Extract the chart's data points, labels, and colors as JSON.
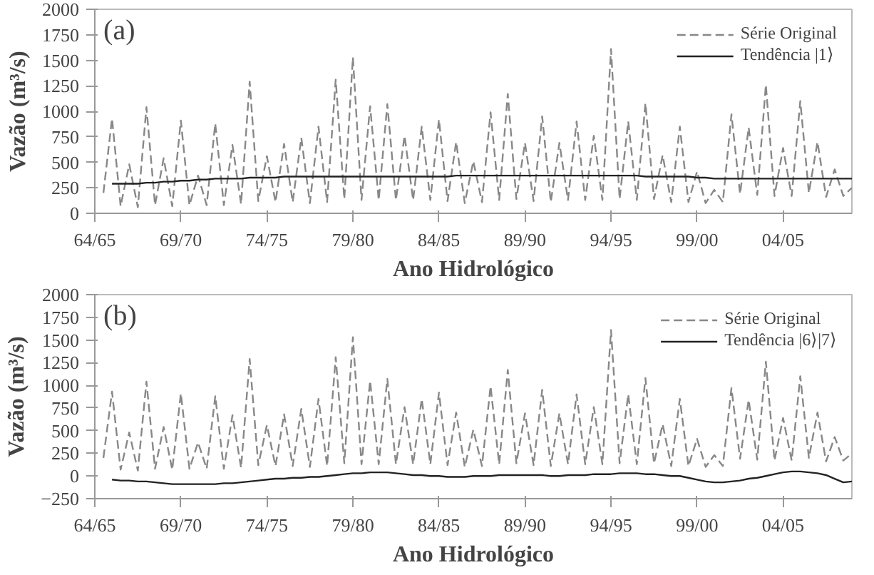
{
  "chart_data": [
    {
      "type": "line",
      "annotations": [
        "(a)"
      ],
      "xlabel": "Ano Hidrológico",
      "ylabel": "Vazão (m³/s)",
      "ylim": [
        0,
        2000
      ],
      "categories": [
        "64/65",
        null,
        null,
        null,
        null,
        null,
        null,
        null,
        null,
        null,
        "69/70",
        null,
        null,
        null,
        null,
        null,
        null,
        null,
        null,
        null,
        "74/75",
        null,
        null,
        null,
        null,
        null,
        null,
        null,
        null,
        null,
        "79/80",
        null,
        null,
        null,
        null,
        null,
        null,
        null,
        null,
        null,
        "84/85",
        null,
        null,
        null,
        null,
        null,
        null,
        null,
        null,
        null,
        "89/90",
        null,
        null,
        null,
        null,
        null,
        null,
        null,
        null,
        null,
        "94/95",
        null,
        null,
        null,
        null,
        null,
        null,
        null,
        null,
        null,
        "99/00",
        null,
        null,
        null,
        null,
        null,
        null,
        null,
        null,
        null,
        "04/05",
        null,
        null,
        null,
        null,
        null,
        null,
        null,
        null
      ],
      "yticks": [
        0,
        250,
        500,
        750,
        1000,
        1250,
        1500,
        1750,
        2000
      ],
      "grid": false,
      "legend": "top right",
      "series": [
        {
          "name": "Série Original",
          "color": "#888888",
          "line_style": "dashed",
          "values": [
            null,
            200,
            930,
            70,
            480,
            60,
            1040,
            80,
            540,
            70,
            910,
            80,
            370,
            80,
            880,
            80,
            670,
            90,
            1290,
            120,
            560,
            110,
            680,
            110,
            740,
            100,
            850,
            110,
            1310,
            140,
            1530,
            130,
            1050,
            130,
            1070,
            130,
            760,
            130,
            850,
            130,
            920,
            120,
            700,
            100,
            510,
            110,
            990,
            130,
            1170,
            140,
            690,
            120,
            950,
            110,
            690,
            130,
            900,
            130,
            760,
            130,
            1610,
            140,
            900,
            130,
            1080,
            140,
            570,
            110,
            850,
            110,
            410,
            100,
            230,
            110,
            970,
            190,
            840,
            180,
            1260,
            170,
            640,
            170,
            1100,
            200,
            700,
            160,
            430,
            170,
            250
          ]
        },
        {
          "name": "Tendência |1⟩",
          "color": "#222222",
          "line_style": "solid",
          "values": [
            null,
            null,
            290,
            290,
            290,
            290,
            300,
            300,
            310,
            310,
            320,
            320,
            330,
            330,
            340,
            340,
            340,
            340,
            350,
            350,
            350,
            350,
            360,
            360,
            360,
            360,
            360,
            360,
            360,
            360,
            360,
            360,
            360,
            360,
            360,
            360,
            360,
            360,
            360,
            360,
            360,
            360,
            370,
            370,
            370,
            370,
            370,
            370,
            370,
            370,
            370,
            370,
            370,
            370,
            370,
            370,
            370,
            370,
            370,
            370,
            370,
            370,
            370,
            370,
            360,
            360,
            360,
            360,
            360,
            360,
            350,
            350,
            340,
            340,
            340,
            340,
            340,
            340,
            340,
            340,
            340,
            340,
            340,
            340,
            340,
            340,
            340,
            340,
            340
          ]
        }
      ]
    },
    {
      "type": "line",
      "annotations": [
        "(b)"
      ],
      "xlabel": "Ano Hidrológico",
      "ylabel": "Vazão (m³/s)",
      "ylim": [
        -250,
        2000
      ],
      "categories": [
        "64/65",
        null,
        null,
        null,
        null,
        null,
        null,
        null,
        null,
        null,
        "69/70",
        null,
        null,
        null,
        null,
        null,
        null,
        null,
        null,
        null,
        "74/75",
        null,
        null,
        null,
        null,
        null,
        null,
        null,
        null,
        null,
        "79/80",
        null,
        null,
        null,
        null,
        null,
        null,
        null,
        null,
        null,
        "84/85",
        null,
        null,
        null,
        null,
        null,
        null,
        null,
        null,
        null,
        "89/90",
        null,
        null,
        null,
        null,
        null,
        null,
        null,
        null,
        null,
        "94/95",
        null,
        null,
        null,
        null,
        null,
        null,
        null,
        null,
        null,
        "99/00",
        null,
        null,
        null,
        null,
        null,
        null,
        null,
        null,
        null,
        "04/05",
        null,
        null,
        null,
        null,
        null,
        null,
        null,
        null
      ],
      "yticks": [
        -250,
        0,
        250,
        500,
        750,
        1000,
        1250,
        1500,
        1750,
        2000
      ],
      "grid": false,
      "legend": "top right",
      "series": [
        {
          "name": "Série Original",
          "color": "#888888",
          "line_style": "dashed",
          "values": [
            null,
            200,
            930,
            70,
            480,
            60,
            1040,
            80,
            540,
            70,
            910,
            80,
            370,
            80,
            880,
            80,
            670,
            90,
            1290,
            120,
            560,
            110,
            680,
            110,
            740,
            100,
            850,
            110,
            1310,
            140,
            1530,
            130,
            1050,
            130,
            1070,
            130,
            760,
            130,
            850,
            130,
            920,
            120,
            700,
            100,
            510,
            110,
            990,
            130,
            1170,
            140,
            690,
            120,
            950,
            110,
            690,
            130,
            900,
            130,
            760,
            130,
            1610,
            140,
            900,
            130,
            1080,
            140,
            570,
            110,
            850,
            110,
            410,
            100,
            230,
            110,
            970,
            190,
            840,
            180,
            1260,
            170,
            640,
            170,
            1100,
            200,
            700,
            160,
            430,
            170,
            250
          ]
        },
        {
          "name": "Tendência |6⟩|7⟩",
          "color": "#222222",
          "line_style": "solid",
          "values": [
            null,
            null,
            -40,
            -50,
            -50,
            -60,
            -60,
            -70,
            -80,
            -90,
            -90,
            -90,
            -90,
            -90,
            -90,
            -80,
            -80,
            -70,
            -60,
            -50,
            -40,
            -30,
            -30,
            -20,
            -20,
            -10,
            -10,
            0,
            10,
            20,
            30,
            30,
            40,
            40,
            40,
            30,
            20,
            10,
            10,
            0,
            0,
            -10,
            -10,
            -10,
            0,
            0,
            0,
            10,
            10,
            10,
            10,
            10,
            10,
            0,
            0,
            10,
            10,
            10,
            20,
            20,
            20,
            30,
            30,
            30,
            20,
            20,
            10,
            0,
            0,
            -20,
            -40,
            -60,
            -70,
            -70,
            -60,
            -50,
            -30,
            -20,
            0,
            20,
            40,
            50,
            50,
            40,
            30,
            10,
            -30,
            -70,
            -60
          ]
        }
      ]
    }
  ]
}
